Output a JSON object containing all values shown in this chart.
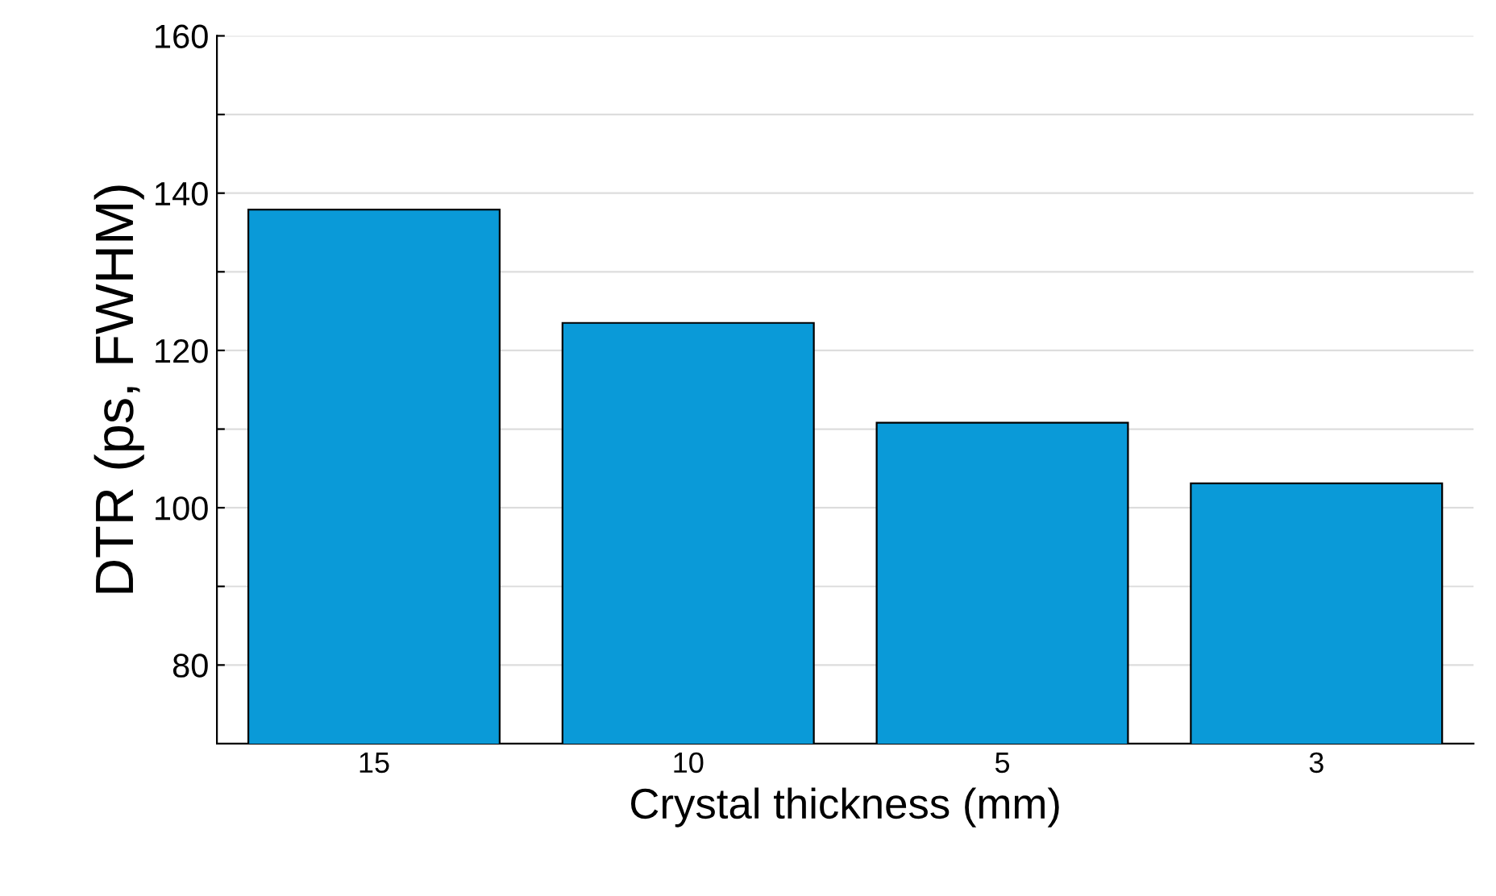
{
  "chart_data": {
    "type": "bar",
    "xlabel": "Crystal thickness (mm)",
    "ylabel": "DTR (ps, FWHM)",
    "categories": [
      "15",
      "10",
      "5",
      "3"
    ],
    "values": [
      137.9,
      123.5,
      110.8,
      103.1
    ],
    "color": "#0a9ad8",
    "ylim": [
      70,
      160
    ],
    "yticks": [
      80,
      {
        "value": 90,
        "label": null
      },
      100,
      {
        "value": 110,
        "label": null
      },
      120,
      {
        "value": 130,
        "label": null
      },
      140,
      {
        "value": 150,
        "label": null
      },
      160
    ],
    "grid": "y"
  }
}
